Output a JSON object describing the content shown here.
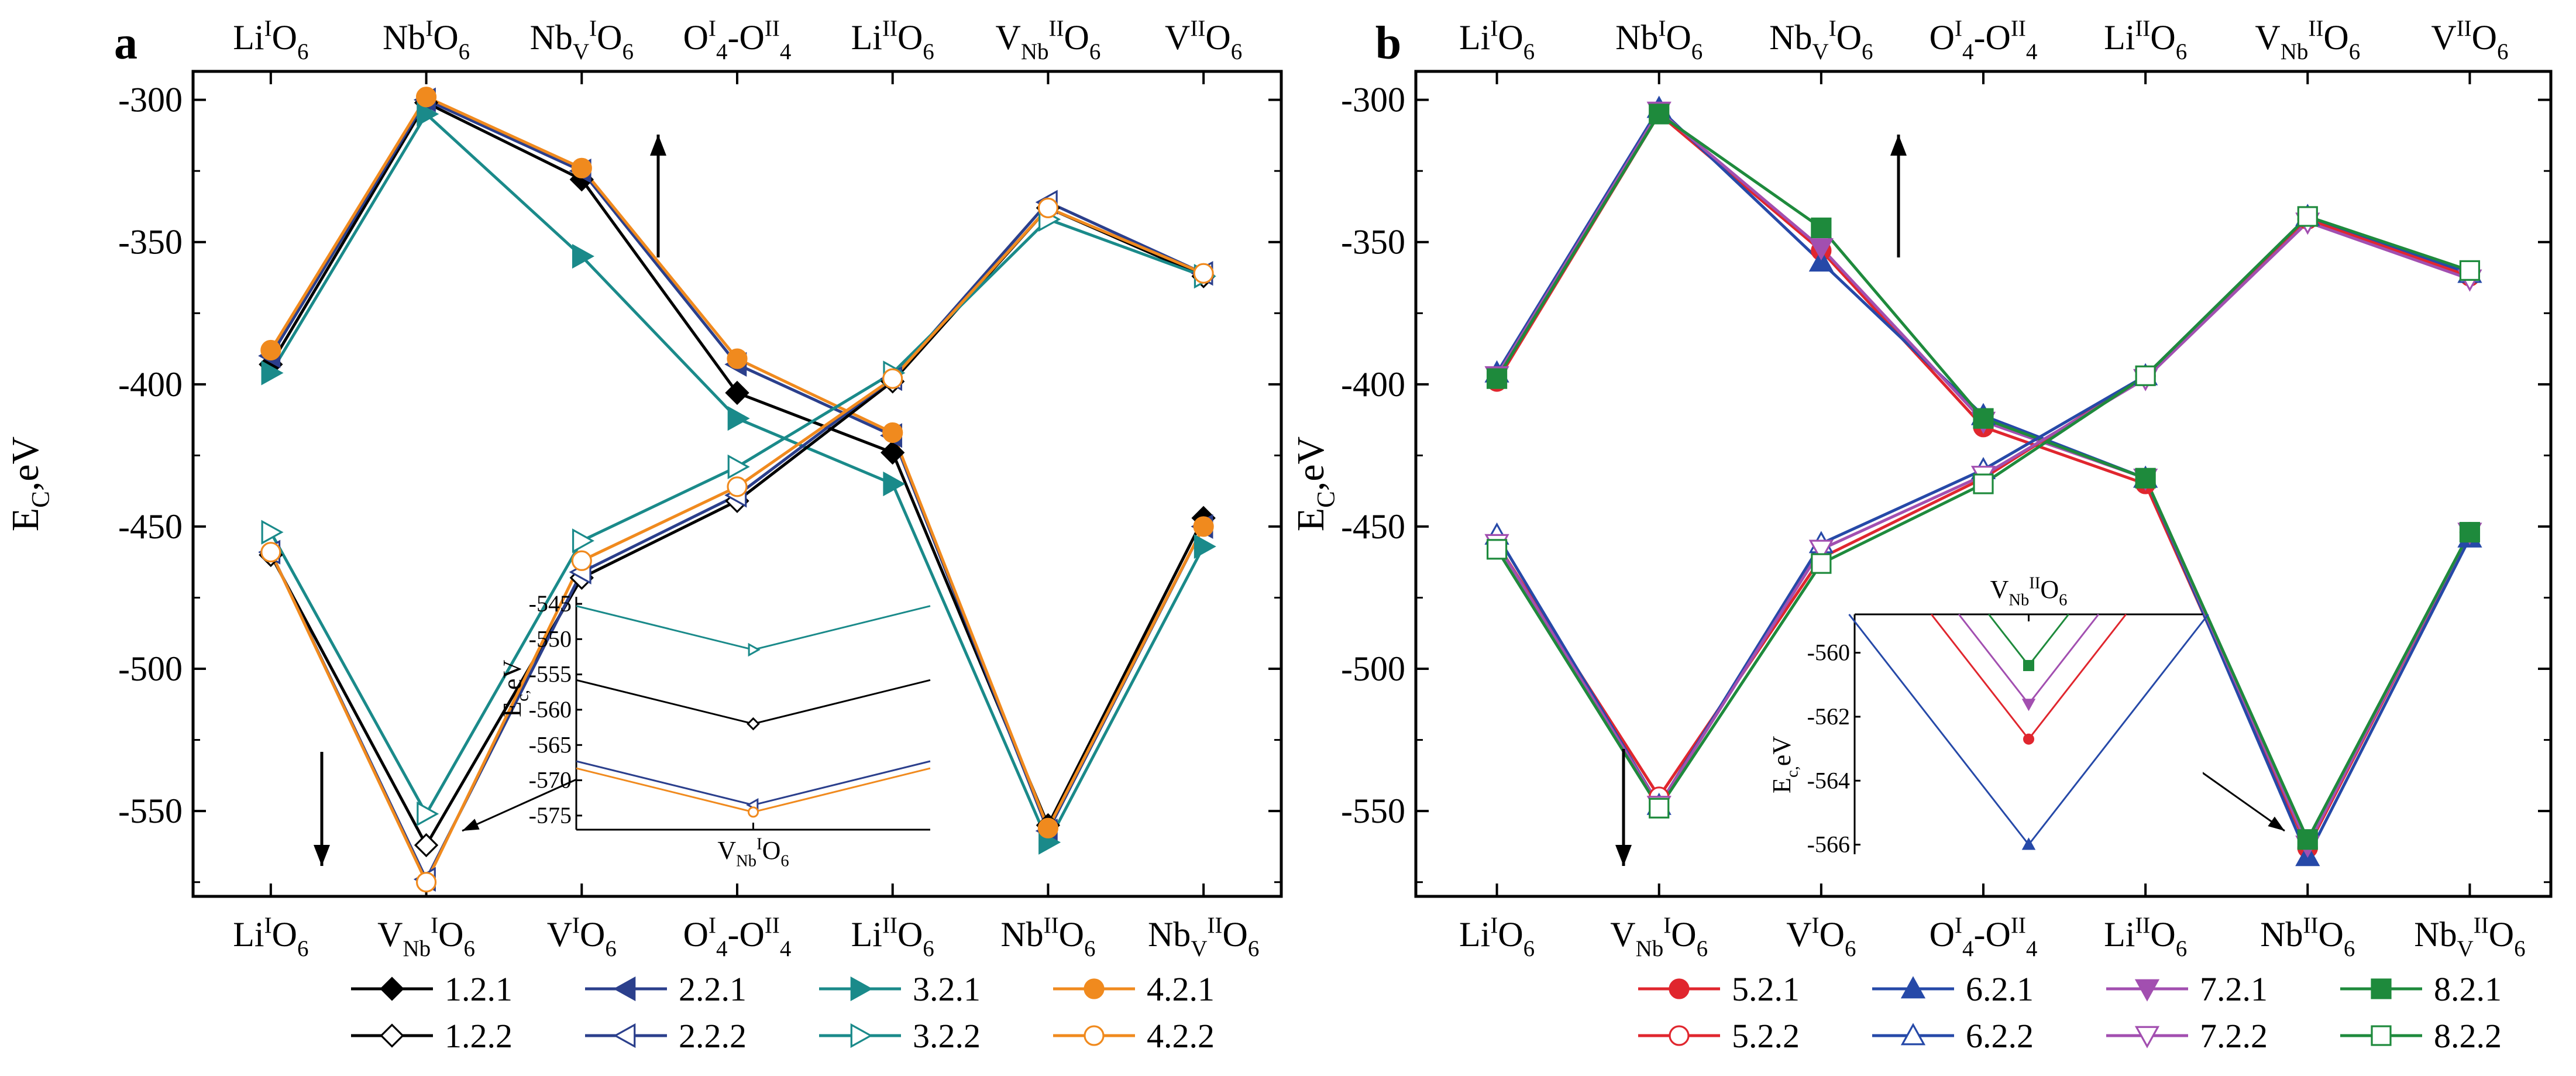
{
  "chart_data": [
    {
      "panel": "a",
      "type": "line",
      "ylabel": "E_C, eV",
      "ylim": [
        -580,
        -290
      ],
      "yticks": [
        -300,
        -350,
        -400,
        -450,
        -500,
        -550
      ],
      "top_labels": [
        "Li^I O_6",
        "Nb^I O_6",
        "Nb_V ^I O_6",
        "O^I _4 -O^II _4",
        "Li^II O_6",
        "V_Nb ^II O_6",
        "V^II O_6"
      ],
      "bottom_labels": [
        "Li^I O_6",
        "V_Nb ^I O_6",
        "V^I O_6",
        "O^I _4 -O^II _4",
        "Li^II O_6",
        "Nb^II O_6",
        "Nb_V ^II O_6"
      ],
      "series": [
        {
          "name": "1.2.1",
          "color": "#000000",
          "marker": "diamond",
          "filled": true,
          "values": [
            -393,
            -301,
            -328,
            -403,
            -424,
            -555,
            -447
          ]
        },
        {
          "name": "2.2.1",
          "color": "#2b3f8c",
          "marker": "triangle-left",
          "filled": true,
          "values": [
            -390,
            -300,
            -325,
            -393,
            -418,
            -557,
            -450
          ]
        },
        {
          "name": "3.2.1",
          "color": "#1a8a8a",
          "marker": "triangle-right",
          "filled": true,
          "values": [
            -396,
            -305,
            -355,
            -412,
            -435,
            -561,
            -457
          ]
        },
        {
          "name": "4.2.1",
          "color": "#f08a1e",
          "marker": "circle",
          "filled": true,
          "values": [
            -388,
            -299,
            -324,
            -391,
            -417,
            -556,
            -450
          ]
        },
        {
          "name": "1.2.2",
          "color": "#000000",
          "marker": "diamond",
          "filled": false,
          "values": [
            -460,
            -562,
            -468,
            -441,
            -399,
            -338,
            -362
          ]
        },
        {
          "name": "2.2.2",
          "color": "#2b3f8c",
          "marker": "triangle-left",
          "filled": false,
          "values": [
            -459,
            -574,
            -466,
            -439,
            -398,
            -336,
            -361
          ]
        },
        {
          "name": "3.2.2",
          "color": "#1a8a8a",
          "marker": "triangle-right",
          "filled": false,
          "values": [
            -452,
            -551,
            -455,
            -429,
            -396,
            -342,
            -362
          ]
        },
        {
          "name": "4.2.2",
          "color": "#f08a1e",
          "marker": "circle",
          "filled": false,
          "values": [
            -459,
            -575,
            -462,
            -436,
            -398,
            -338,
            -361
          ]
        }
      ],
      "inset": {
        "xlabel": "V_Nb ^I O_6",
        "ylabel": "E_C, eV",
        "ylim": [
          -577,
          -544
        ],
        "yticks": [
          -545,
          -550,
          -555,
          -560,
          -565,
          -570,
          -575
        ],
        "points": [
          {
            "series": "3.2.2",
            "value": -551.5
          },
          {
            "series": "1.2.2",
            "value": -562
          },
          {
            "series": "2.2.2",
            "value": -573.5
          },
          {
            "series": "4.2.2",
            "value": -574.5
          }
        ]
      }
    },
    {
      "panel": "b",
      "type": "line",
      "ylabel": "E_C, eV",
      "ylim": [
        -580,
        -290
      ],
      "yticks": [
        -300,
        -350,
        -400,
        -450,
        -500,
        -550
      ],
      "top_labels": [
        "Li^I O_6",
        "Nb^I O_6",
        "Nb_V ^I O_6",
        "O^I _4 -O^II _4",
        "Li^II O_6",
        "V_Nb ^II O_6",
        "V^II O_6"
      ],
      "bottom_labels": [
        "Li^I O_6",
        "V_Nb ^I O_6",
        "V^I O_6",
        "O^I _4 -O^II _4",
        "Li^II O_6",
        "Nb^II O_6",
        "Nb_V ^II O_6"
      ],
      "series": [
        {
          "name": "5.2.1",
          "color": "#e0262e",
          "marker": "circle",
          "filled": true,
          "values": [
            -399,
            -305,
            -353,
            -415,
            -435,
            -563,
            -452
          ]
        },
        {
          "name": "6.2.1",
          "color": "#2649a8",
          "marker": "triangle-up",
          "filled": true,
          "values": [
            -396,
            -303,
            -357,
            -411,
            -433,
            -566,
            -454
          ]
        },
        {
          "name": "7.2.1",
          "color": "#a24fb0",
          "marker": "triangle-down",
          "filled": true,
          "values": [
            -397,
            -304,
            -352,
            -413,
            -433,
            -562,
            -452
          ]
        },
        {
          "name": "8.2.1",
          "color": "#1e8a3c",
          "marker": "square",
          "filled": true,
          "values": [
            -398,
            -305,
            -345,
            -412,
            -433,
            -560,
            -452
          ]
        },
        {
          "name": "5.2.2",
          "color": "#e0262e",
          "marker": "circle",
          "filled": false,
          "values": [
            -456,
            -545,
            -461,
            -433,
            -397,
            -342,
            -362
          ]
        },
        {
          "name": "6.2.2",
          "color": "#2649a8",
          "marker": "triangle-up",
          "filled": false,
          "values": [
            -453,
            -548,
            -456,
            -430,
            -397,
            -341,
            -361
          ]
        },
        {
          "name": "7.2.2",
          "color": "#a24fb0",
          "marker": "triangle-down",
          "filled": false,
          "values": [
            -456,
            -548,
            -458,
            -432,
            -398,
            -343,
            -363
          ]
        },
        {
          "name": "8.2.2",
          "color": "#1e8a3c",
          "marker": "square",
          "filled": false,
          "values": [
            -458,
            -549,
            -463,
            -435,
            -397,
            -341,
            -360
          ]
        }
      ],
      "inset": {
        "title": "V_Nb ^II O_6",
        "ylabel": "E_C, eV",
        "ylim": [
          -566.3,
          -558.8
        ],
        "yticks": [
          -560,
          -562,
          -564,
          -566
        ],
        "points": [
          {
            "series": "8.2.1",
            "value": -560.4
          },
          {
            "series": "7.2.1",
            "value": -561.6
          },
          {
            "series": "5.2.1",
            "value": -562.7
          },
          {
            "series": "6.2.1",
            "value": -566
          }
        ]
      }
    }
  ]
}
